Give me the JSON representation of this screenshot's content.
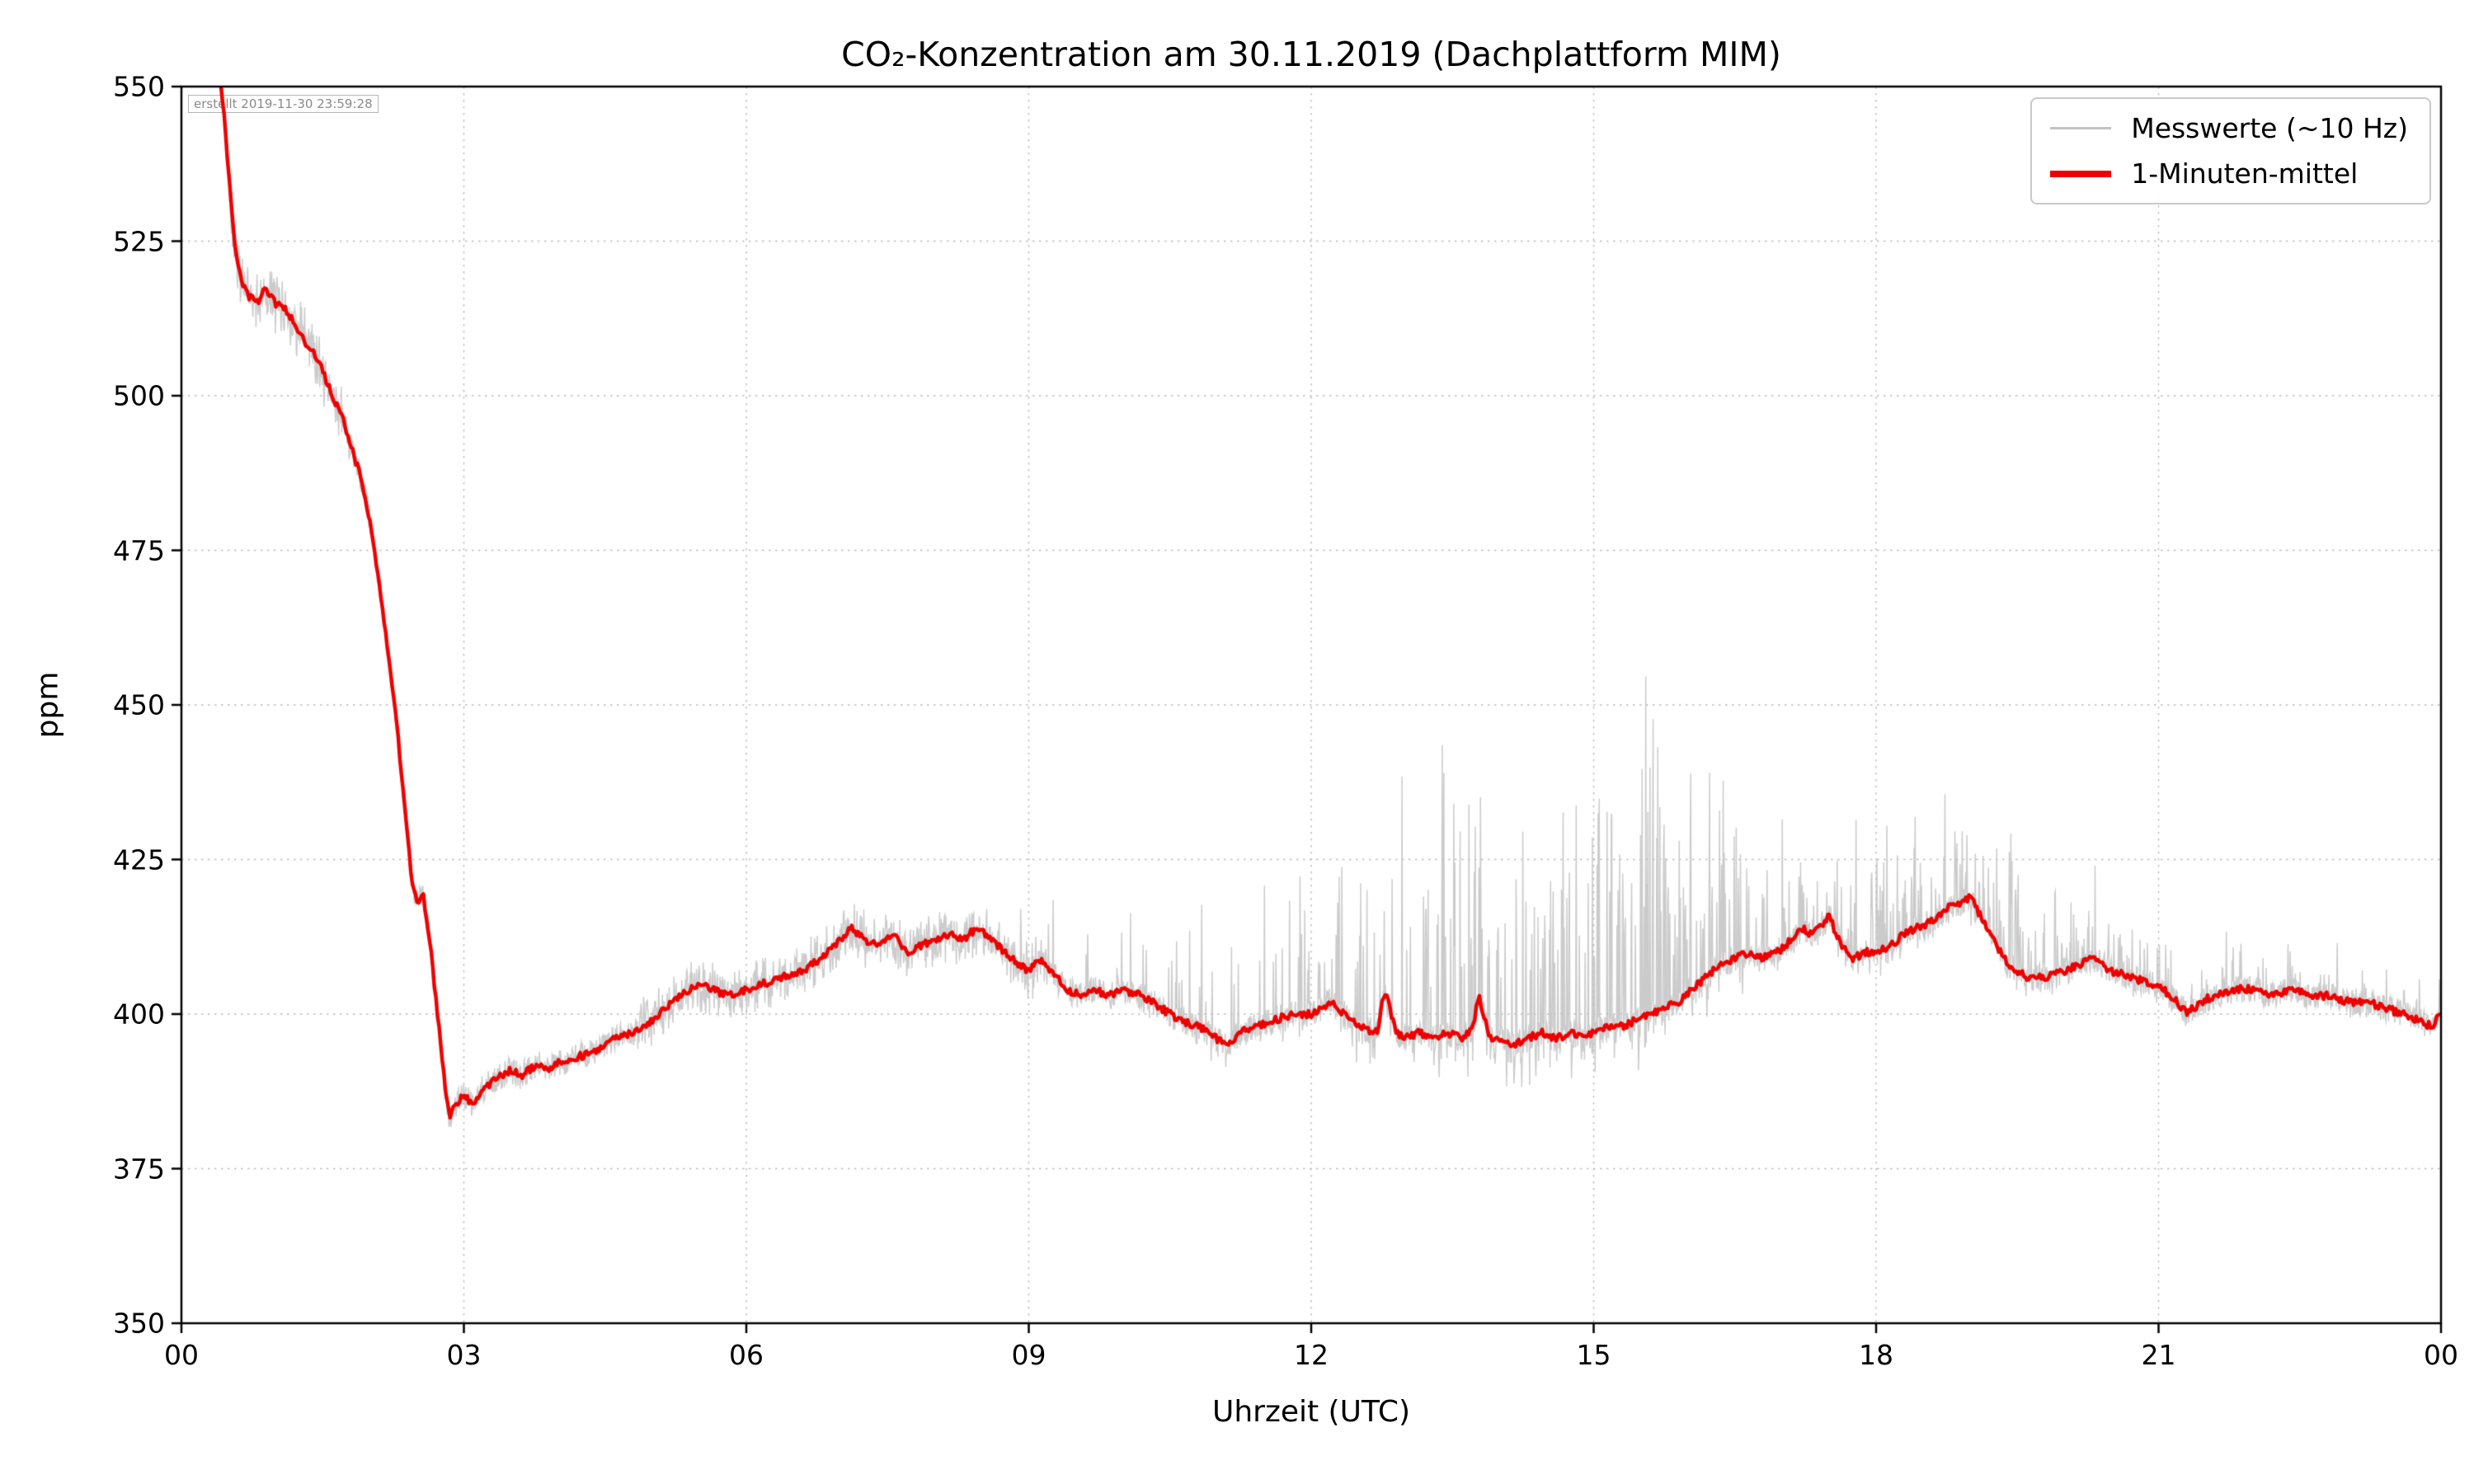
{
  "figure": {
    "background": "#ffffff"
  },
  "chart_data": {
    "type": "line",
    "title": "CO₂-Konzentration am 30.11.2019 (Dachplattform MIM)",
    "xlabel": "Uhrzeit (UTC)",
    "ylabel": "ppm",
    "annotation": "erstellt 2019-11-30 23:59:28",
    "xlim": [
      0,
      24
    ],
    "ylim": [
      350,
      550
    ],
    "x_ticks": [
      0,
      3,
      6,
      9,
      12,
      15,
      18,
      21,
      24
    ],
    "x_ticklabels": [
      "00",
      "03",
      "06",
      "09",
      "12",
      "15",
      "18",
      "21",
      "00"
    ],
    "y_ticks": [
      350,
      375,
      400,
      425,
      450,
      475,
      500,
      525,
      550
    ],
    "grid": {
      "style": "dotted",
      "color": "#bbbbbb"
    },
    "legend": {
      "position": "upper right",
      "entries": [
        {
          "label": "Messwerte (~10 Hz)",
          "color": "#c2c2c2",
          "linewidth": 1.5
        },
        {
          "label": "1-Minuten-mittel",
          "color": "#ee0000",
          "linewidth": 4
        }
      ]
    },
    "series": [
      {
        "name": "1-Minuten-mittel",
        "type": "line",
        "color": "#ee0000",
        "unit": "ppm",
        "anchors_t": [
          0.42,
          0.45,
          0.5,
          0.55,
          0.6,
          0.65,
          0.72,
          0.8,
          0.88,
          0.95,
          1.0,
          1.1,
          1.2,
          1.3,
          1.4,
          1.5,
          1.6,
          1.7,
          1.8,
          1.9,
          2.0,
          2.1,
          2.2,
          2.3,
          2.38,
          2.45,
          2.5,
          2.57,
          2.63,
          2.7,
          2.75,
          2.8,
          2.85,
          2.9,
          3.0,
          3.1,
          3.2,
          3.3,
          3.4,
          3.5,
          3.6,
          3.7,
          3.8,
          3.9,
          4.0,
          4.2,
          4.4,
          4.6,
          4.8,
          5.0,
          5.15,
          5.3,
          5.5,
          5.65,
          5.8,
          6.0,
          6.2,
          6.4,
          6.6,
          6.8,
          7.0,
          7.1,
          7.25,
          7.4,
          7.55,
          7.7,
          7.85,
          8.0,
          8.15,
          8.3,
          8.45,
          8.6,
          8.75,
          8.9,
          9.0,
          9.1,
          9.25,
          9.4,
          9.55,
          9.7,
          9.85,
          10.0,
          10.2,
          10.4,
          10.6,
          10.8,
          11.0,
          11.1,
          11.25,
          11.4,
          11.6,
          11.8,
          12.0,
          12.2,
          12.35,
          12.5,
          12.7,
          12.78,
          12.9,
          13.0,
          13.15,
          13.3,
          13.45,
          13.6,
          13.72,
          13.78,
          13.9,
          14.0,
          14.15,
          14.3,
          14.45,
          14.6,
          14.75,
          14.9,
          15.0,
          15.15,
          15.3,
          15.45,
          15.6,
          15.75,
          15.9,
          16.05,
          16.2,
          16.35,
          16.5,
          16.65,
          16.8,
          16.95,
          17.1,
          17.2,
          17.3,
          17.42,
          17.5,
          17.6,
          17.75,
          17.9,
          18.0,
          18.15,
          18.3,
          18.45,
          18.6,
          18.75,
          18.9,
          19.0,
          19.1,
          19.25,
          19.4,
          19.6,
          19.8,
          20.0,
          20.15,
          20.3,
          20.5,
          20.7,
          20.9,
          21.05,
          21.2,
          21.3,
          21.45,
          21.6,
          21.8,
          22.0,
          22.2,
          22.4,
          22.6,
          22.8,
          23.0,
          23.2,
          23.4,
          23.6,
          23.75,
          23.9,
          24.0
        ],
        "anchors_ppm": [
          550,
          546,
          536,
          527,
          521,
          518,
          516,
          515,
          517,
          516,
          515,
          514,
          512,
          509,
          507,
          504,
          500,
          497,
          492,
          487,
          480,
          470,
          458,
          445,
          432,
          421,
          418,
          419,
          413,
          403,
          396,
          388,
          383,
          385,
          387,
          385,
          388,
          389,
          390,
          391,
          390,
          391,
          392,
          391,
          392,
          393,
          394,
          396,
          397,
          399,
          401,
          403,
          405,
          404,
          403,
          404,
          405,
          406,
          407,
          409,
          412,
          414,
          412,
          411,
          413,
          410,
          411,
          412,
          413,
          412,
          414,
          412,
          410,
          408,
          407,
          409,
          407,
          404,
          403,
          404,
          403,
          404,
          403,
          401,
          399,
          398,
          396,
          395,
          397,
          398,
          399,
          400,
          400,
          402,
          400,
          398,
          397,
          404,
          397,
          396,
          397,
          396,
          397,
          396,
          398,
          403,
          396,
          396,
          395,
          396,
          397,
          396,
          397,
          396,
          397,
          398,
          398,
          399,
          400,
          401,
          402,
          404,
          406,
          408,
          409,
          410,
          409,
          410,
          412,
          414,
          413,
          414,
          416,
          412,
          409,
          410,
          410,
          411,
          413,
          414,
          415,
          417,
          418,
          419,
          416,
          412,
          408,
          406,
          406,
          407,
          408,
          409,
          407,
          406,
          405,
          404,
          402,
          400,
          402,
          403,
          404,
          404,
          403,
          404,
          403,
          403,
          402,
          402,
          401,
          400,
          399,
          398,
          400
        ]
      },
      {
        "name": "Messwerte (~10 Hz)",
        "type": "line",
        "color": "#c2c2c2",
        "derivation": "1-minute mean plus high-frequency noise and upward spikes",
        "noise_base_ppm": 2.2,
        "spike_regions": [
          {
            "from": 0.5,
            "to": 1.8,
            "amp": 5,
            "density": 0.6,
            "sym": true
          },
          {
            "from": 4.8,
            "to": 9.2,
            "amp": 4,
            "density": 0.5,
            "sym": true
          },
          {
            "from": 8.9,
            "to": 9.5,
            "amp": 24,
            "density": 0.05
          },
          {
            "from": 9.6,
            "to": 10.7,
            "amp": 17,
            "density": 0.07
          },
          {
            "from": 10.7,
            "to": 12.4,
            "amp": 32,
            "density": 0.12
          },
          {
            "from": 12.4,
            "to": 13.3,
            "amp": 42,
            "density": 0.16
          },
          {
            "from": 13.3,
            "to": 14.1,
            "amp": 52,
            "density": 0.2
          },
          {
            "from": 14.1,
            "to": 15.1,
            "amp": 58,
            "density": 0.24
          },
          {
            "from": 15.1,
            "to": 15.8,
            "amp": 65,
            "density": 0.26
          },
          {
            "from": 15.8,
            "to": 16.6,
            "amp": 46,
            "density": 0.2
          },
          {
            "from": 16.6,
            "to": 17.7,
            "amp": 22,
            "density": 0.18
          },
          {
            "from": 17.7,
            "to": 19.6,
            "amp": 24,
            "density": 0.2
          },
          {
            "from": 19.6,
            "to": 20.7,
            "amp": 16,
            "density": 0.15
          },
          {
            "from": 20.7,
            "to": 21.9,
            "amp": 12,
            "density": 0.12
          },
          {
            "from": 21.9,
            "to": 24.0,
            "amp": 9,
            "density": 0.1
          }
        ]
      }
    ]
  }
}
